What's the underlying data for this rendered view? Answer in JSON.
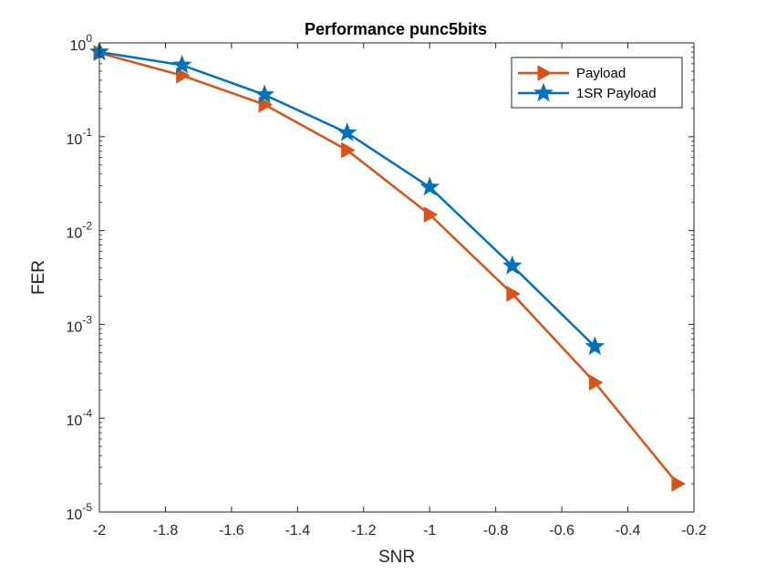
{
  "chart_data": {
    "type": "line",
    "title": "Performance  punc5bits",
    "xlabel": "SNR",
    "ylabel": "FER",
    "xlim": [
      -2,
      -0.2
    ],
    "ylim": [
      1e-05,
      1
    ],
    "yscale": "log",
    "xticks": [
      -2,
      -1.8,
      -1.6,
      -1.4,
      -1.2,
      -1,
      -0.8,
      -0.6,
      -0.4,
      -0.2
    ],
    "xtick_labels": [
      "-2",
      "-1.8",
      "-1.6",
      "-1.4",
      "-1.2",
      "-1",
      "-0.8",
      "-0.6",
      "-0.4",
      "-0.2"
    ],
    "yticks": [
      {
        "base": "10",
        "exp": "0",
        "value": 1
      },
      {
        "base": "10",
        "exp": "-1",
        "value": 0.1
      },
      {
        "base": "10",
        "exp": "-2",
        "value": 0.01
      },
      {
        "base": "10",
        "exp": "-3",
        "value": 0.001
      },
      {
        "base": "10",
        "exp": "-4",
        "value": 0.0001
      },
      {
        "base": "10",
        "exp": "-5",
        "value": 1e-05
      }
    ],
    "grid": false,
    "legend_position": "top-right",
    "series": [
      {
        "name": "Payload",
        "color": "#D95319",
        "marker": "triangle-right",
        "x": [
          -2,
          -1.75,
          -1.5,
          -1.25,
          -1,
          -0.75,
          -0.5,
          -0.25
        ],
        "y": [
          0.78,
          0.45,
          0.22,
          0.072,
          0.0148,
          0.00212,
          0.00024,
          2e-05
        ]
      },
      {
        "name": "1SR Payload",
        "color": "#0072BD",
        "marker": "star",
        "x": [
          -2,
          -1.75,
          -1.5,
          -1.25,
          -1,
          -0.75,
          -0.5
        ],
        "y": [
          0.8,
          0.58,
          0.28,
          0.11,
          0.029,
          0.0042,
          0.00058
        ]
      }
    ]
  }
}
